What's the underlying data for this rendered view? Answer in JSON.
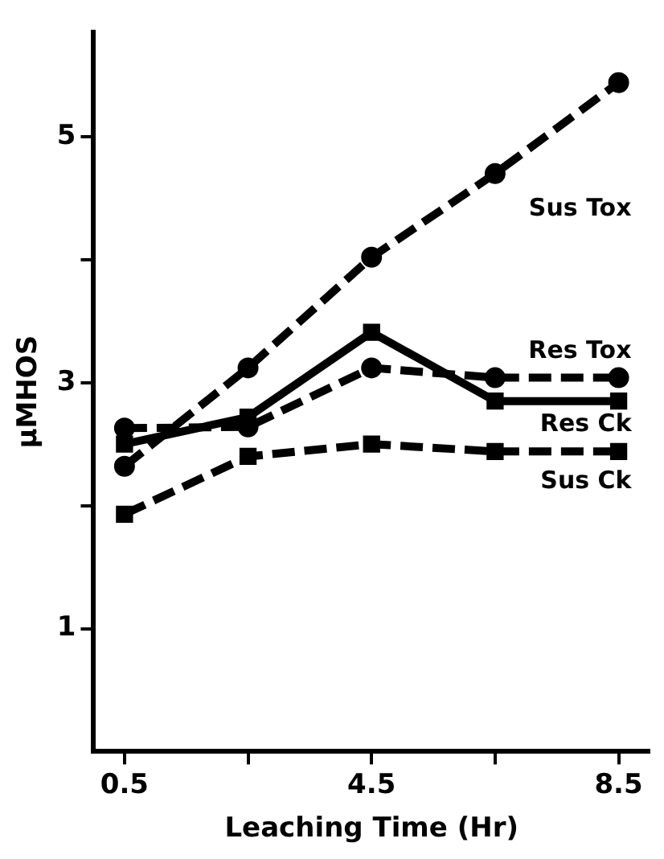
{
  "chart_data": {
    "type": "line",
    "xlabel": "Leaching Time (Hr)",
    "ylabel": "μMHOS",
    "x": [
      0.5,
      2.5,
      4.5,
      6.5,
      8.5
    ],
    "xlim": [
      0,
      9
    ],
    "xticks": [
      0.5,
      {
        "value": 2.5,
        "label": null
      },
      4.5,
      {
        "value": 6.5,
        "label": null
      },
      8.5
    ],
    "ylim": [
      0,
      5.85
    ],
    "yticks": [
      1,
      {
        "value": 2,
        "label": null
      },
      3,
      {
        "value": 4,
        "label": null
      },
      5
    ],
    "grid": false,
    "legend": false,
    "series": [
      {
        "name": "Sus Tox",
        "color": "#000000",
        "values": [
          2.32,
          3.12,
          4.02,
          4.7,
          5.44
        ],
        "marker": "circle",
        "line_style": "dashed"
      },
      {
        "name": "Res Tox",
        "color": "#000000",
        "values": [
          2.63,
          2.64,
          3.12,
          3.04,
          3.04
        ],
        "marker": "circle",
        "line_style": "dashed"
      },
      {
        "name": "Res Ck",
        "color": "#000000",
        "values": [
          2.5,
          2.72,
          3.41,
          2.85,
          2.85
        ],
        "marker": "square",
        "line_style": "solid"
      },
      {
        "name": "Sus Ck",
        "color": "#000000",
        "values": [
          1.93,
          2.4,
          2.5,
          2.44,
          2.44
        ],
        "marker": "square",
        "line_style": "dashed"
      }
    ]
  }
}
